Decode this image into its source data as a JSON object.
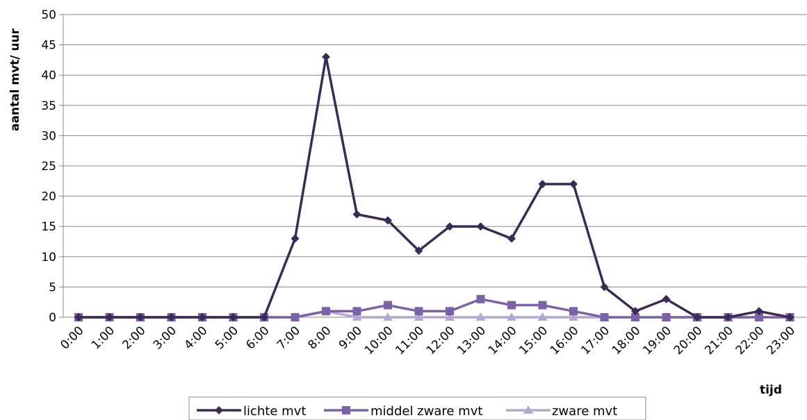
{
  "chart_data": {
    "type": "line",
    "xlabel": "tijd",
    "ylabel": "aantal mvt/ uur",
    "ylim": [
      0,
      50
    ],
    "yticks": [
      0,
      5,
      10,
      15,
      20,
      25,
      30,
      35,
      40,
      45,
      50
    ],
    "grid": true,
    "legend": "bottom",
    "categories": [
      "0:00",
      "1:00",
      "2:00",
      "3:00",
      "4:00",
      "5:00",
      "6:00",
      "7:00",
      "8:00",
      "9:00",
      "10:00",
      "11:00",
      "12:00",
      "13:00",
      "14:00",
      "15:00",
      "16:00",
      "17:00",
      "18:00",
      "19:00",
      "20:00",
      "21:00",
      "22:00",
      "23:00"
    ],
    "series": [
      {
        "name": "lichte mvt",
        "color": "#3b2a55",
        "marker": "diamond",
        "values": [
          0,
          0,
          0,
          0,
          0,
          0,
          0,
          13,
          43,
          17,
          16,
          11,
          15,
          15,
          13,
          22,
          22,
          5,
          1,
          3,
          0,
          0,
          1,
          0
        ]
      },
      {
        "name": "middel zware mvt",
        "color": "#7b62a8",
        "marker": "square",
        "values": [
          0,
          0,
          0,
          0,
          0,
          0,
          0,
          0,
          1,
          1,
          2,
          1,
          1,
          3,
          2,
          2,
          1,
          0,
          0,
          0,
          0,
          0,
          0,
          0
        ]
      },
      {
        "name": "zware mvt",
        "color": "#b4a7d2",
        "marker": "triangle",
        "values": [
          0,
          0,
          0,
          0,
          0,
          0,
          0,
          0,
          1,
          0,
          0,
          0,
          0,
          0,
          0,
          0,
          0,
          0,
          0,
          0,
          0,
          0,
          0,
          0
        ]
      }
    ]
  }
}
